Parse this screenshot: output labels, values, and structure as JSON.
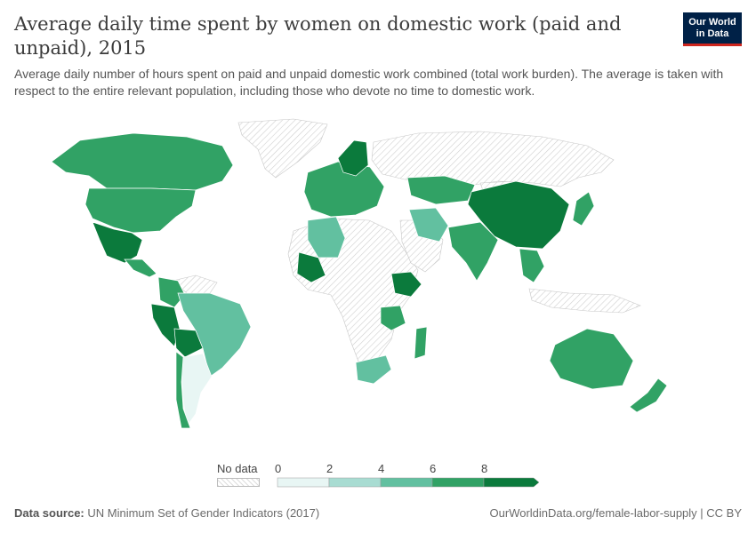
{
  "header": {
    "title": "Average daily time spent by women on domestic work (paid and unpaid), 2015",
    "subtitle": "Average daily number of hours spent on paid and unpaid domestic work combined (total work burden). The average is taken with respect to the entire relevant population, including those who devote no time to domestic work.",
    "logo_line1": "Our World",
    "logo_line2": "in Data"
  },
  "legend": {
    "no_data_label": "No data",
    "bins": [
      {
        "from": 0,
        "to": 2,
        "color": "#e8f6f4"
      },
      {
        "from": 2,
        "to": 4,
        "color": "#a8dcd2"
      },
      {
        "from": 4,
        "to": 6,
        "color": "#62c0a0"
      },
      {
        "from": 6,
        "to": 8,
        "color": "#31a265"
      },
      {
        "from": 8,
        "to": null,
        "color": "#0b7a3c"
      }
    ],
    "tick_labels": [
      "0",
      "2",
      "4",
      "6",
      "8"
    ],
    "no_data_color": "#e6e6e6"
  },
  "footer": {
    "source_label": "Data source:",
    "source_text": "UN Minimum Set of Gender Indicators (2017)",
    "right_text": "OurWorldinData.org/female-labor-supply | CC BY"
  },
  "map_regions": [
    {
      "name": "region-canada",
      "color": "#31a265"
    },
    {
      "name": "region-usa",
      "color": "#31a265"
    },
    {
      "name": "region-mexico",
      "color": "#0b7a3c"
    },
    {
      "name": "region-central-america",
      "color": "#31a265"
    },
    {
      "name": "region-colombia",
      "color": "#31a265"
    },
    {
      "name": "region-peru",
      "color": "#0b7a3c"
    },
    {
      "name": "region-bolivia",
      "color": "#0b7a3c"
    },
    {
      "name": "region-brazil",
      "color": "#62c0a0"
    },
    {
      "name": "region-argentina",
      "color": "#e8f6f4"
    },
    {
      "name": "region-chile",
      "color": "#31a265"
    },
    {
      "name": "region-europe",
      "color": "#31a265"
    },
    {
      "name": "region-scandinavia",
      "color": "#0b7a3c"
    },
    {
      "name": "region-algeria",
      "color": "#62c0a0"
    },
    {
      "name": "region-mali",
      "color": "#0b7a3c"
    },
    {
      "name": "region-ethiopia",
      "color": "#0b7a3c"
    },
    {
      "name": "region-tanzania",
      "color": "#31a265"
    },
    {
      "name": "region-south-africa",
      "color": "#62c0a0"
    },
    {
      "name": "region-madagascar",
      "color": "#31a265"
    },
    {
      "name": "region-kazakhstan",
      "color": "#31a265"
    },
    {
      "name": "region-iran",
      "color": "#62c0a0"
    },
    {
      "name": "region-india",
      "color": "#31a265"
    },
    {
      "name": "region-china",
      "color": "#0b7a3c"
    },
    {
      "name": "region-japan",
      "color": "#31a265"
    },
    {
      "name": "region-southeast-asia",
      "color": "#31a265"
    },
    {
      "name": "region-australia",
      "color": "#31a265"
    },
    {
      "name": "region-new-zealand",
      "color": "#31a265"
    }
  ]
}
